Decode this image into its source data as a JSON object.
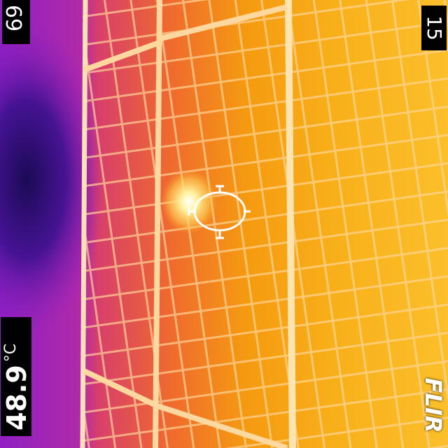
{
  "overlay": {
    "scale_max": "69",
    "scale_min": "15",
    "spot_value": "48.9",
    "spot_unit": "°C",
    "logo_text": "FLIR"
  },
  "colors": {
    "cold": "#2a0a6b",
    "cool": "#a01cc8",
    "warm": "#e2502e",
    "hot": "#f19a12",
    "hottest": "#ffe873",
    "cell_line": "#ffd69a"
  },
  "icons": {
    "spot_meter": "crosshair-ellipse-icon",
    "hotspot": "hotspot-glow"
  }
}
